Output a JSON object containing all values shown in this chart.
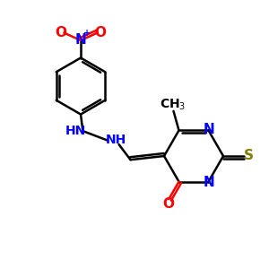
{
  "bg_color": "#ffffff",
  "bond_color": "#000000",
  "N_color": "#0000ff",
  "O_color": "#ff0000",
  "S_color": "#808000",
  "line_width": 1.8,
  "fig_size": [
    3.0,
    3.0
  ],
  "dpi": 100,
  "xlim": [
    0,
    10
  ],
  "ylim": [
    0,
    10
  ]
}
